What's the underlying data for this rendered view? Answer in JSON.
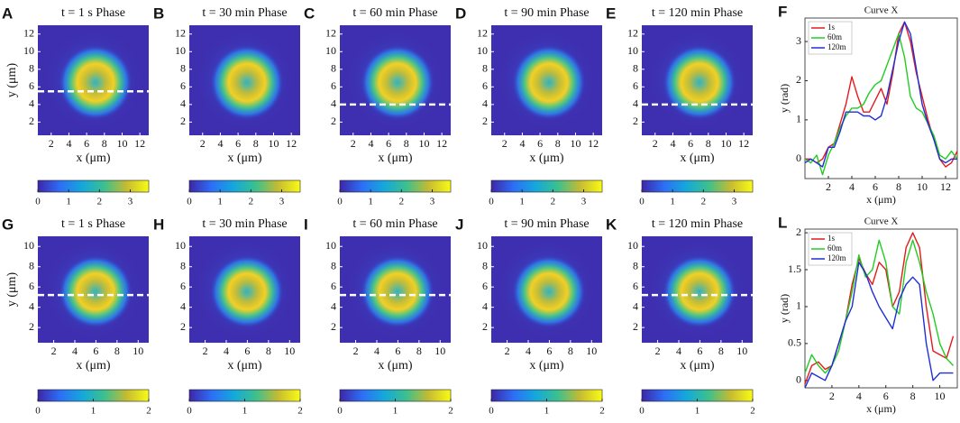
{
  "chart_data": [
    {
      "type": "image",
      "letter": "A",
      "title": "t = 1 s Phase",
      "xlabel": "x (μm)",
      "ylabel": "y (μm)",
      "xlim": [
        0.5,
        13
      ],
      "ylim": [
        0.5,
        13
      ],
      "xticks": [
        2,
        4,
        6,
        8,
        10,
        12
      ],
      "yticks": [
        2,
        4,
        6,
        8,
        10,
        12
      ],
      "cut_y": 5.5,
      "clim": [
        0,
        3.6
      ],
      "cticks": [
        0,
        1,
        2,
        3
      ]
    },
    {
      "type": "image",
      "letter": "B",
      "title": "t = 30 min Phase",
      "xlabel": "x (μm)",
      "xlim": [
        0.5,
        13
      ],
      "ylim": [
        0.5,
        13
      ],
      "xticks": [
        2,
        4,
        6,
        8,
        10,
        12
      ],
      "yticks": [
        2,
        4,
        6,
        8,
        10,
        12
      ],
      "clim": [
        0,
        3.6
      ],
      "cticks": [
        0,
        1,
        2,
        3
      ]
    },
    {
      "type": "image",
      "letter": "C",
      "title": "t = 60 min Phase",
      "xlabel": "x (μm)",
      "xlim": [
        0.5,
        13
      ],
      "ylim": [
        0.5,
        13
      ],
      "xticks": [
        2,
        4,
        6,
        8,
        10,
        12
      ],
      "yticks": [
        2,
        4,
        6,
        8,
        10,
        12
      ],
      "cut_y": 4,
      "clim": [
        0,
        3.6
      ],
      "cticks": [
        0,
        1,
        2,
        3
      ]
    },
    {
      "type": "image",
      "letter": "D",
      "title": "t = 90 min Phase",
      "xlabel": "x (μm)",
      "xlim": [
        0.5,
        13
      ],
      "ylim": [
        0.5,
        13
      ],
      "xticks": [
        2,
        4,
        6,
        8,
        10,
        12
      ],
      "yticks": [
        2,
        4,
        6,
        8,
        10,
        12
      ],
      "clim": [
        0,
        3.6
      ],
      "cticks": [
        0,
        1,
        2,
        3
      ]
    },
    {
      "type": "image",
      "letter": "E",
      "title": "t = 120 min Phase",
      "xlabel": "x (μm)",
      "xlim": [
        0.5,
        13
      ],
      "ylim": [
        0.5,
        13
      ],
      "xticks": [
        2,
        4,
        6,
        8,
        10,
        12
      ],
      "yticks": [
        2,
        4,
        6,
        8,
        10,
        12
      ],
      "cut_y": 4,
      "clim": [
        0,
        3.6
      ],
      "cticks": [
        0,
        1,
        2,
        3
      ]
    },
    {
      "type": "line",
      "letter": "F",
      "title": "Curve X",
      "xlabel": "x (μm)",
      "ylabel": "y (rad)",
      "xlim": [
        0,
        13
      ],
      "ylim": [
        -0.5,
        3.6
      ],
      "xticks": [
        2,
        4,
        6,
        8,
        10,
        12
      ],
      "yticks": [
        0,
        1,
        2,
        3
      ],
      "legend": "upper left",
      "x": [
        0,
        0.5,
        1,
        1.5,
        2,
        2.5,
        3,
        3.5,
        4,
        4.5,
        5,
        5.5,
        6,
        6.5,
        7,
        7.5,
        8,
        8.5,
        9,
        9.5,
        10,
        10.5,
        11,
        11.5,
        12,
        12.5,
        13
      ],
      "series": [
        {
          "name": "1s",
          "color": "#e41a1c",
          "values": [
            0,
            0,
            -0.1,
            0,
            0.3,
            0.4,
            0.9,
            1.4,
            2.1,
            1.6,
            1.2,
            1.2,
            1.5,
            1.8,
            1.4,
            2.2,
            3.2,
            3.5,
            3.0,
            2.2,
            1.6,
            1.0,
            0.5,
            0,
            -0.2,
            -0.1,
            0.2
          ]
        },
        {
          "name": "60m",
          "color": "#22cc22",
          "values": [
            0,
            -0.1,
            0.1,
            -0.4,
            0.1,
            0.4,
            0.8,
            1.1,
            1.3,
            1.3,
            1.4,
            1.7,
            1.9,
            2.0,
            2.4,
            2.8,
            3.2,
            2.6,
            1.6,
            1.3,
            1.2,
            0.9,
            0.6,
            0.1,
            0,
            0.2,
            0
          ]
        },
        {
          "name": "120m",
          "color": "#1f2fd6",
          "values": [
            -0.1,
            0,
            -0.1,
            -0.2,
            0.3,
            0.3,
            0.7,
            1.2,
            1.2,
            1.2,
            1.1,
            1.1,
            1.0,
            1.1,
            1.6,
            2.3,
            3.0,
            3.5,
            3.2,
            2.3,
            1.4,
            0.9,
            0.5,
            0,
            -0.1,
            0,
            0
          ]
        }
      ]
    },
    {
      "type": "image",
      "letter": "G",
      "title": "t = 1 s Phase",
      "xlabel": "x (μm)",
      "ylabel": "y (μm)",
      "xlim": [
        0.5,
        11
      ],
      "ylim": [
        0.5,
        11
      ],
      "xticks": [
        2,
        4,
        6,
        8,
        10
      ],
      "yticks": [
        2,
        4,
        6,
        8,
        10
      ],
      "cut_y": 5.2,
      "clim": [
        0,
        2
      ],
      "cticks": [
        0,
        1,
        2
      ]
    },
    {
      "type": "image",
      "letter": "H",
      "title": "t = 30 min Phase",
      "xlabel": "x (μm)",
      "xlim": [
        0.5,
        11
      ],
      "ylim": [
        0.5,
        11
      ],
      "xticks": [
        2,
        4,
        6,
        8,
        10
      ],
      "yticks": [
        2,
        4,
        6,
        8,
        10
      ],
      "clim": [
        0,
        2
      ],
      "cticks": [
        0,
        1,
        2
      ]
    },
    {
      "type": "image",
      "letter": "I",
      "title": "t = 60 min Phase",
      "xlabel": "x (μm)",
      "xlim": [
        0.5,
        11
      ],
      "ylim": [
        0.5,
        11
      ],
      "xticks": [
        2,
        4,
        6,
        8,
        10
      ],
      "yticks": [
        2,
        4,
        6,
        8,
        10
      ],
      "cut_y": 5.2,
      "clim": [
        0,
        2
      ],
      "cticks": [
        0,
        1,
        2
      ]
    },
    {
      "type": "image",
      "letter": "J",
      "title": "t = 90 min Phase",
      "xlabel": "x (μm)",
      "xlim": [
        0.5,
        11
      ],
      "ylim": [
        0.5,
        11
      ],
      "xticks": [
        2,
        4,
        6,
        8,
        10
      ],
      "yticks": [
        2,
        4,
        6,
        8,
        10
      ],
      "clim": [
        0,
        2
      ],
      "cticks": [
        0,
        1,
        2
      ]
    },
    {
      "type": "image",
      "letter": "K",
      "title": "t = 120 min Phase",
      "xlabel": "x (μm)",
      "xlim": [
        0.5,
        11
      ],
      "ylim": [
        0.5,
        11
      ],
      "xticks": [
        2,
        4,
        6,
        8,
        10
      ],
      "yticks": [
        2,
        4,
        6,
        8,
        10
      ],
      "cut_y": 5.2,
      "clim": [
        0,
        2
      ],
      "cticks": [
        0,
        1,
        2
      ]
    },
    {
      "type": "line",
      "letter": "L",
      "title": "Curve X",
      "xlabel": "x (μm)",
      "ylabel": "y (rad)",
      "xlim": [
        0,
        11.3
      ],
      "ylim": [
        -0.1,
        2.05
      ],
      "xticks": [
        2,
        4,
        6,
        8,
        10
      ],
      "yticks": [
        0,
        0.5,
        1,
        1.5,
        2
      ],
      "legend": "upper left",
      "x": [
        0,
        0.5,
        1,
        1.5,
        2,
        2.5,
        3,
        3.5,
        4,
        4.5,
        5,
        5.5,
        6,
        6.5,
        7,
        7.5,
        8,
        8.5,
        9,
        9.5,
        10,
        10.5,
        11
      ],
      "series": [
        {
          "name": "1s",
          "color": "#e41a1c",
          "values": [
            -0.05,
            0.2,
            0.25,
            0.15,
            0.2,
            0.5,
            0.8,
            1.3,
            1.65,
            1.45,
            1.3,
            1.6,
            1.5,
            1.0,
            1.2,
            1.8,
            2.0,
            1.8,
            1.0,
            0.4,
            0.35,
            0.3,
            0.6
          ]
        },
        {
          "name": "60m",
          "color": "#22cc22",
          "values": [
            0.1,
            0.35,
            0.2,
            0.1,
            0.2,
            0.4,
            0.8,
            1.2,
            1.7,
            1.4,
            1.5,
            1.9,
            1.6,
            1.0,
            0.9,
            1.6,
            1.9,
            1.6,
            1.2,
            0.9,
            0.5,
            0.3,
            0.2
          ]
        },
        {
          "name": "120m",
          "color": "#1f2fd6",
          "values": [
            -0.1,
            0.1,
            0.05,
            0,
            0.2,
            0.5,
            0.8,
            1.0,
            1.6,
            1.45,
            1.2,
            1.0,
            0.85,
            0.7,
            1.1,
            1.3,
            1.4,
            1.3,
            0.5,
            0,
            0.1,
            0.1,
            0.1
          ]
        }
      ]
    }
  ]
}
